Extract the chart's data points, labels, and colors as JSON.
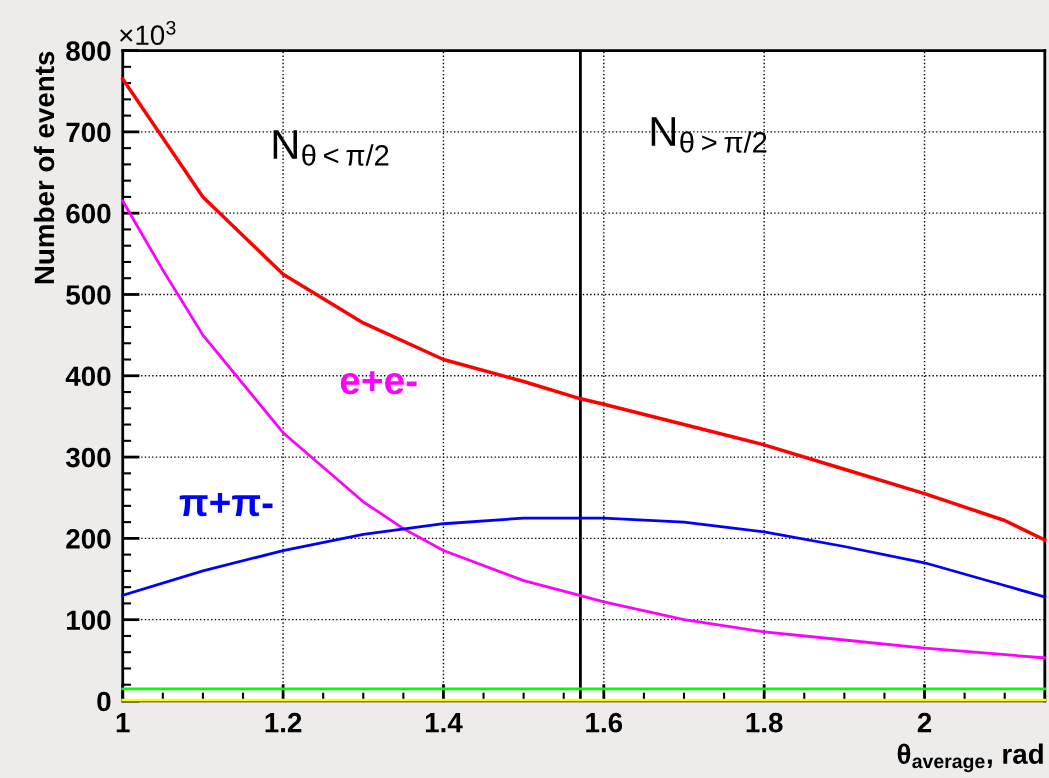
{
  "chart_data": {
    "type": "line",
    "xlabel": "θ$_{average}$, rad",
    "ylabel": "Number of events",
    "x": [
      1,
      1.1,
      1.2,
      1.3,
      1.4,
      1.5,
      1.57,
      1.6,
      1.7,
      1.8,
      1.9,
      2.0,
      2.1,
      2.15
    ],
    "series": [
      {
        "color": "#ff0000",
        "values": [
          765,
          620,
          525,
          465,
          420,
          393,
          372,
          365,
          340,
          315,
          285,
          255,
          222,
          198
        ]
      },
      {
        "name": "e+e-",
        "color": "#ff00ff",
        "x": [
          1,
          1.05,
          1.1,
          1.2,
          1.3,
          1.35,
          1.4,
          1.5,
          1.57,
          1.6,
          1.7,
          1.8,
          1.9,
          2.0,
          2.15
        ],
        "values": [
          615,
          530,
          450,
          330,
          245,
          212,
          185,
          148,
          130,
          122,
          100,
          85,
          75,
          65,
          53
        ]
      },
      {
        "name": "π+π-",
        "color": "#0000ff",
        "x": [
          1,
          1.1,
          1.2,
          1.3,
          1.4,
          1.5,
          1.6,
          1.7,
          1.8,
          1.9,
          2.0,
          2.1,
          2.15
        ],
        "values": [
          130,
          160,
          185,
          205,
          218,
          225,
          225,
          220,
          208,
          190,
          170,
          142,
          128
        ]
      },
      {
        "color": "#00ff00",
        "x": [
          1,
          2.15
        ],
        "values": [
          15,
          15
        ]
      },
      {
        "color": "#ffff00",
        "x": [
          1,
          2.15
        ],
        "values": [
          1,
          1
        ]
      }
    ],
    "ref_lines": [
      {
        "axis": "x",
        "value": 1.5708,
        "color": "#000000"
      }
    ],
    "annotations": [
      "×10$^{3}$",
      "N$_{θ<π/2}$",
      "N$_{θ>π/2}$"
    ],
    "xlim": [
      1,
      2.15
    ],
    "xticks": [
      1,
      1.2,
      1.4,
      1.6,
      1.8,
      2
    ],
    "ylim": [
      0,
      800
    ],
    "yticks": [
      0,
      100,
      200,
      300,
      400,
      500,
      600,
      700,
      800
    ],
    "grid": true,
    "legend": false,
    "marker": "none",
    "line_style": "solid"
  }
}
